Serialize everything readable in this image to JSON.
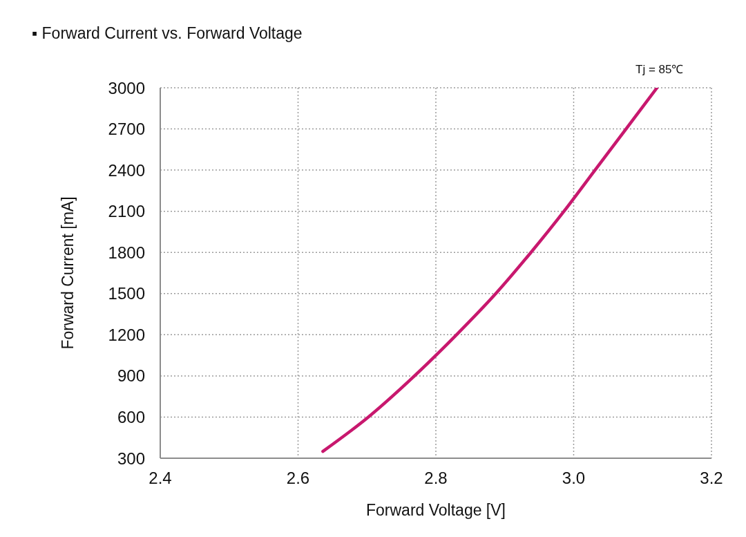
{
  "chart_data": {
    "type": "line",
    "title": "▪ Forward Current vs. Forward Voltage",
    "xlabel": "Forward Voltage [V]",
    "ylabel": "Forward Current [mA]",
    "annotations": [
      "Tj = 85℃"
    ],
    "x": [
      2.636,
      2.702,
      2.769,
      2.83,
      2.887,
      2.938,
      2.986,
      3.031,
      3.076,
      3.121
    ],
    "values": [
      350,
      600,
      900,
      1200,
      1500,
      1800,
      2100,
      2400,
      2700,
      3000
    ],
    "color": "#c8186e",
    "xlim": [
      2.4,
      3.2
    ],
    "xticks": [
      2.4,
      2.6,
      2.8,
      {
        "value": 3.0,
        "label": "3.0"
      },
      3.2
    ],
    "ylim": [
      300,
      3000
    ],
    "yticks": [
      300,
      600,
      900,
      1200,
      1500,
      1800,
      2100,
      2400,
      2700,
      3000
    ],
    "grid": true,
    "marker": "none",
    "line_style": "solid"
  }
}
